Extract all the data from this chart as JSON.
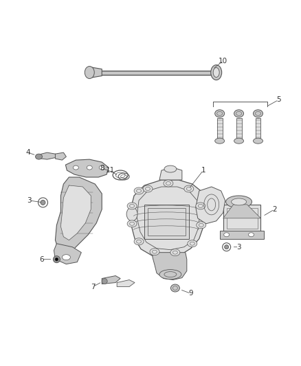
{
  "background": "#ffffff",
  "fig_width": 4.38,
  "fig_height": 5.33,
  "dpi": 100,
  "line_color": "#555555",
  "text_color": "#333333",
  "fill_color": "#c8c8c8",
  "fill_light": "#e0e0e0",
  "fill_dark": "#999999"
}
